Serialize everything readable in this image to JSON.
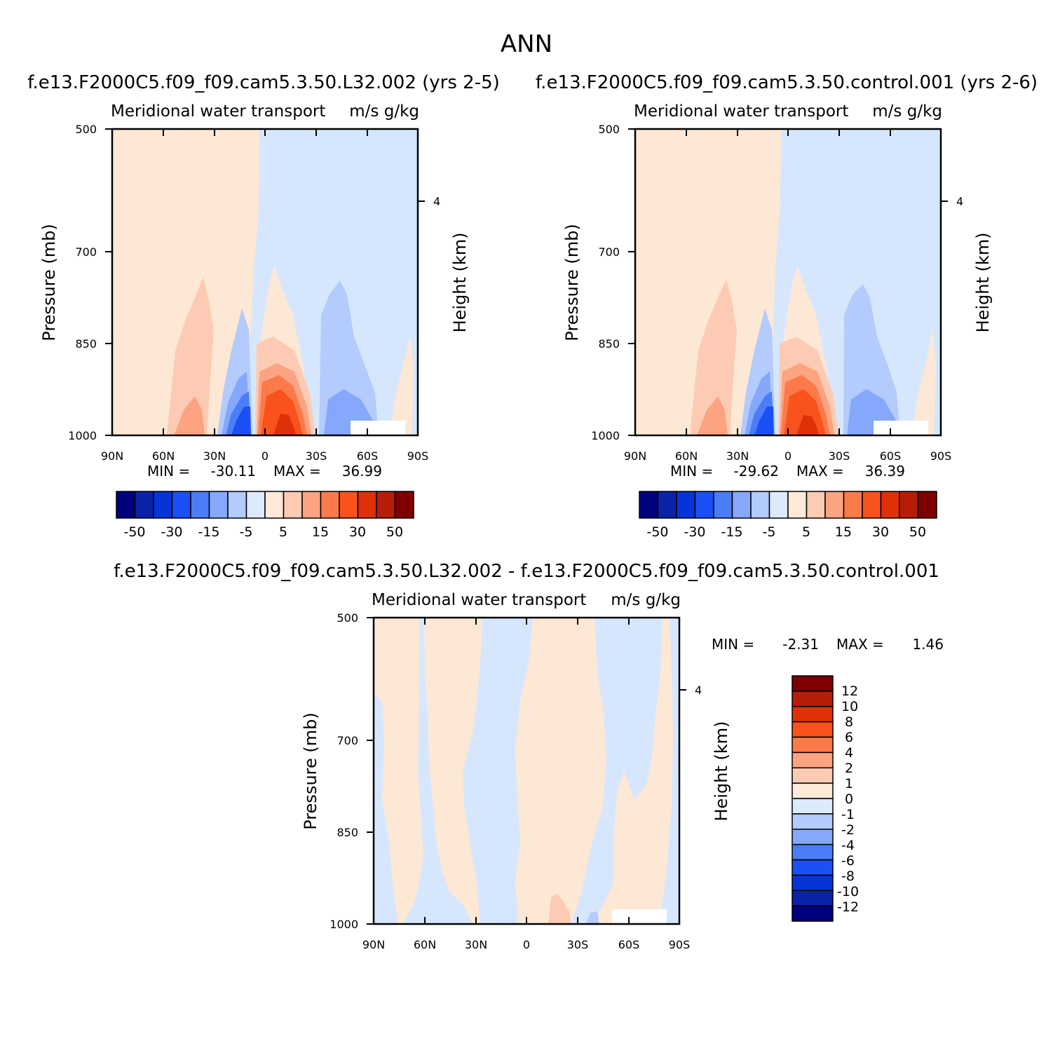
{
  "figure": {
    "title": "ANN"
  },
  "palette": {
    "colors": [
      "#00007f",
      "#0a22a8",
      "#0534d9",
      "#1a50f5",
      "#4c7df8",
      "#85a7fc",
      "#b3cbfd",
      "#ddeafd",
      "#ffe9d8",
      "#fdcbb4",
      "#fca382",
      "#fc7a4a",
      "#f9521d",
      "#e03008",
      "#b71c06",
      "#7f0000"
    ],
    "pos_fill_light": "#fde8d5",
    "neg_fill_light": "#d6e7fd"
  },
  "panels": [
    {
      "id": "top-left",
      "case_title": "f.e13.F2000C5.f09_f09.cam5.3.50.L32.002 (yrs 2-5)",
      "variable": "Meridional water transport",
      "units": "m/s g/kg",
      "ylabel": "Pressure (mb)",
      "ylabel_right": "Height (km)",
      "y_ticks": [
        "500",
        "700",
        "850",
        "1000"
      ],
      "right_tick": "4",
      "x_ticks": [
        "90N",
        "60N",
        "30N",
        "0",
        "30S",
        "60S",
        "90S"
      ],
      "stats": {
        "min_label": "MIN =",
        "min": "-30.11",
        "max_label": "MAX =",
        "max": "36.99"
      },
      "colorbar_labels": [
        "-50",
        "-30",
        "-15",
        "-5",
        "5",
        "15",
        "30",
        "50"
      ]
    },
    {
      "id": "top-right",
      "case_title": "f.e13.F2000C5.f09_f09.cam5.3.50.control.001 (yrs 2-6)",
      "variable": "Meridional water transport",
      "units": "m/s g/kg",
      "ylabel": "Pressure (mb)",
      "ylabel_right": "Height (km)",
      "y_ticks": [
        "500",
        "700",
        "850",
        "1000"
      ],
      "right_tick": "4",
      "x_ticks": [
        "90N",
        "60N",
        "30N",
        "0",
        "30S",
        "60S",
        "90S"
      ],
      "stats": {
        "min_label": "MIN =",
        "min": "-29.62",
        "max_label": "MAX =",
        "max": "36.39"
      },
      "colorbar_labels": [
        "-50",
        "-30",
        "-15",
        "-5",
        "5",
        "15",
        "30",
        "50"
      ]
    },
    {
      "id": "bottom",
      "case_title": "f.e13.F2000C5.f09_f09.cam5.3.50.L32.002 - f.e13.F2000C5.f09_f09.cam5.3.50.control.001",
      "variable": "Meridional water transport",
      "units": "m/s g/kg",
      "ylabel": "Pressure (mb)",
      "ylabel_right": "Height (km)",
      "y_ticks": [
        "500",
        "700",
        "850",
        "1000"
      ],
      "right_tick": "4",
      "x_ticks": [
        "90N",
        "60N",
        "30N",
        "0",
        "30S",
        "60S",
        "90S"
      ],
      "stats": {
        "min_label": "MIN =",
        "min": "-2.31",
        "max_label": "MAX =",
        "max": "1.46"
      },
      "colorbar_labels": [
        "12",
        "10",
        "8",
        "6",
        "4",
        "2",
        "1",
        "0",
        "-1",
        "-2",
        "-4",
        "-6",
        "-8",
        "-10",
        "-12"
      ]
    }
  ],
  "chart_data": [
    {
      "type": "heatmap",
      "title": "f.e13.F2000C5.f09_f09.cam5.3.50.L32.002 (yrs 2-5)",
      "subtitle": "Meridional water transport",
      "units": "m/s g/kg",
      "xlabel": "",
      "ylabel": "Pressure (mb)",
      "x_ticks": [
        "90N",
        "60N",
        "30N",
        "0",
        "30S",
        "60S",
        "90S"
      ],
      "y_ticks": [
        500,
        700,
        850,
        1000
      ],
      "ylim": [
        1000,
        500
      ],
      "min": -30.11,
      "max": 36.99,
      "colorbar_levels": [
        -50,
        -40,
        -30,
        -20,
        -15,
        -10,
        -5,
        0,
        5,
        10,
        15,
        20,
        30,
        40,
        50
      ]
    },
    {
      "type": "heatmap",
      "title": "f.e13.F2000C5.f09_f09.cam5.3.50.control.001 (yrs 2-6)",
      "subtitle": "Meridional water transport",
      "units": "m/s g/kg",
      "xlabel": "",
      "ylabel": "Pressure (mb)",
      "x_ticks": [
        "90N",
        "60N",
        "30N",
        "0",
        "30S",
        "60S",
        "90S"
      ],
      "y_ticks": [
        500,
        700,
        850,
        1000
      ],
      "ylim": [
        1000,
        500
      ],
      "min": -29.62,
      "max": 36.39,
      "colorbar_levels": [
        -50,
        -40,
        -30,
        -20,
        -15,
        -10,
        -5,
        0,
        5,
        10,
        15,
        20,
        30,
        40,
        50
      ]
    },
    {
      "type": "heatmap",
      "title": "f.e13.F2000C5.f09_f09.cam5.3.50.L32.002 - f.e13.F2000C5.f09_f09.cam5.3.50.control.001",
      "subtitle": "Meridional water transport",
      "units": "m/s g/kg",
      "xlabel": "",
      "ylabel": "Pressure (mb)",
      "x_ticks": [
        "90N",
        "60N",
        "30N",
        "0",
        "30S",
        "60S",
        "90S"
      ],
      "y_ticks": [
        500,
        700,
        850,
        1000
      ],
      "ylim": [
        1000,
        500
      ],
      "min": -2.31,
      "max": 1.46,
      "colorbar_levels": [
        12,
        10,
        8,
        6,
        4,
        2,
        1,
        0,
        -1,
        -2,
        -4,
        -6,
        -8,
        -10,
        -12
      ]
    }
  ]
}
